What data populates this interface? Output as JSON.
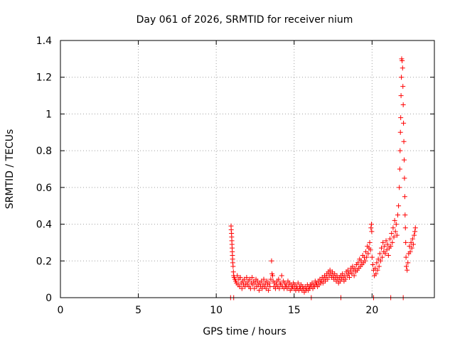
{
  "chart_data": {
    "type": "scatter",
    "title": "Day 061 of 2026, SRMTID for receiver nium",
    "xlabel": "GPS time / hours",
    "ylabel": "SRMTID / TECUs",
    "xlim": [
      0,
      24
    ],
    "ylim": [
      0,
      1.4
    ],
    "x_ticks": [
      0,
      5,
      10,
      15,
      20
    ],
    "x_tick_labels": [
      "0",
      "5",
      "10",
      "15",
      "20"
    ],
    "y_ticks": [
      0,
      0.2,
      0.4,
      0.6,
      0.8,
      1.0,
      1.2,
      1.4
    ],
    "y_tick_labels": [
      "0",
      "0.2",
      "0.4",
      "0.6",
      "0.8",
      "1",
      "1.2",
      "1.4"
    ],
    "grid": true,
    "marker": "plus",
    "color": "#ff0000",
    "series": [
      {
        "name": "SRMTID",
        "points": [
          [
            10.92,
            0.0
          ],
          [
            11.12,
            0.0
          ],
          [
            10.95,
            0.39
          ],
          [
            10.96,
            0.37
          ],
          [
            10.98,
            0.35
          ],
          [
            10.99,
            0.33
          ],
          [
            11.0,
            0.31
          ],
          [
            11.01,
            0.29
          ],
          [
            11.02,
            0.27
          ],
          [
            11.03,
            0.25
          ],
          [
            11.04,
            0.23
          ],
          [
            11.05,
            0.21
          ],
          [
            11.06,
            0.19
          ],
          [
            11.08,
            0.17
          ],
          [
            11.1,
            0.14
          ],
          [
            11.12,
            0.12
          ],
          [
            11.15,
            0.11
          ],
          [
            11.2,
            0.1
          ],
          [
            11.25,
            0.09
          ],
          [
            11.3,
            0.08
          ],
          [
            11.35,
            0.12
          ],
          [
            11.4,
            0.07
          ],
          [
            11.45,
            0.1
          ],
          [
            11.5,
            0.06
          ],
          [
            11.55,
            0.11
          ],
          [
            11.6,
            0.08
          ],
          [
            11.65,
            0.05
          ],
          [
            11.7,
            0.09
          ],
          [
            11.75,
            0.07
          ],
          [
            11.8,
            0.1
          ],
          [
            11.85,
            0.06
          ],
          [
            11.9,
            0.08
          ],
          [
            11.95,
            0.11
          ],
          [
            12.0,
            0.07
          ],
          [
            12.05,
            0.09
          ],
          [
            12.1,
            0.06
          ],
          [
            12.15,
            0.1
          ],
          [
            12.2,
            0.05
          ],
          [
            12.25,
            0.08
          ],
          [
            12.3,
            0.11
          ],
          [
            12.35,
            0.07
          ],
          [
            12.4,
            0.09
          ],
          [
            12.45,
            0.05
          ],
          [
            12.5,
            0.08
          ],
          [
            12.55,
            0.1
          ],
          [
            12.6,
            0.06
          ],
          [
            12.65,
            0.09
          ],
          [
            12.7,
            0.07
          ],
          [
            12.75,
            0.04
          ],
          [
            12.8,
            0.08
          ],
          [
            12.85,
            0.06
          ],
          [
            12.9,
            0.09
          ],
          [
            12.95,
            0.05
          ],
          [
            13.0,
            0.07
          ],
          [
            13.05,
            0.1
          ],
          [
            13.1,
            0.06
          ],
          [
            13.15,
            0.08
          ],
          [
            13.2,
            0.05
          ],
          [
            13.25,
            0.09
          ],
          [
            13.3,
            0.07
          ],
          [
            13.35,
            0.04
          ],
          [
            13.4,
            0.08
          ],
          [
            13.45,
            0.06
          ],
          [
            13.5,
            0.1
          ],
          [
            13.55,
            0.2
          ],
          [
            13.58,
            0.13
          ],
          [
            13.62,
            0.12
          ],
          [
            13.65,
            0.09
          ],
          [
            13.7,
            0.06
          ],
          [
            13.75,
            0.08
          ],
          [
            13.8,
            0.05
          ],
          [
            13.85,
            0.07
          ],
          [
            13.9,
            0.09
          ],
          [
            13.95,
            0.06
          ],
          [
            14.0,
            0.1
          ],
          [
            14.05,
            0.05
          ],
          [
            14.1,
            0.08
          ],
          [
            14.15,
            0.07
          ],
          [
            14.2,
            0.12
          ],
          [
            14.25,
            0.06
          ],
          [
            14.3,
            0.09
          ],
          [
            14.35,
            0.05
          ],
          [
            14.4,
            0.08
          ],
          [
            14.45,
            0.06
          ],
          [
            14.5,
            0.07
          ],
          [
            14.55,
            0.05
          ],
          [
            14.6,
            0.09
          ],
          [
            14.65,
            0.06
          ],
          [
            14.7,
            0.08
          ],
          [
            14.75,
            0.04
          ],
          [
            14.8,
            0.07
          ],
          [
            14.85,
            0.05
          ],
          [
            14.9,
            0.06
          ],
          [
            14.95,
            0.08
          ],
          [
            15.0,
            0.05
          ],
          [
            15.05,
            0.07
          ],
          [
            15.1,
            0.04
          ],
          [
            15.15,
            0.06
          ],
          [
            15.2,
            0.05
          ],
          [
            15.25,
            0.08
          ],
          [
            15.3,
            0.04
          ],
          [
            15.35,
            0.06
          ],
          [
            15.4,
            0.05
          ],
          [
            15.45,
            0.07
          ],
          [
            15.5,
            0.04
          ],
          [
            15.55,
            0.06
          ],
          [
            15.6,
            0.05
          ],
          [
            15.65,
            0.03
          ],
          [
            15.7,
            0.06
          ],
          [
            15.75,
            0.04
          ],
          [
            15.8,
            0.05
          ],
          [
            15.85,
            0.07
          ],
          [
            15.9,
            0.04
          ],
          [
            15.95,
            0.06
          ],
          [
            16.0,
            0.05
          ],
          [
            16.05,
            0.07
          ],
          [
            16.1,
            0.06
          ],
          [
            16.15,
            0.08
          ],
          [
            16.2,
            0.05
          ],
          [
            16.25,
            0.07
          ],
          [
            16.3,
            0.06
          ],
          [
            16.35,
            0.09
          ],
          [
            16.4,
            0.07
          ],
          [
            16.45,
            0.08
          ],
          [
            16.5,
            0.06
          ],
          [
            16.55,
            0.09
          ],
          [
            16.6,
            0.07
          ],
          [
            16.65,
            0.1
          ],
          [
            16.7,
            0.08
          ],
          [
            16.75,
            0.09
          ],
          [
            16.8,
            0.11
          ],
          [
            16.85,
            0.08
          ],
          [
            16.9,
            0.1
          ],
          [
            16.95,
            0.12
          ],
          [
            17.0,
            0.09
          ],
          [
            17.05,
            0.11
          ],
          [
            17.1,
            0.13
          ],
          [
            17.15,
            0.1
          ],
          [
            17.2,
            0.14
          ],
          [
            17.25,
            0.12
          ],
          [
            17.3,
            0.15
          ],
          [
            17.35,
            0.13
          ],
          [
            17.4,
            0.11
          ],
          [
            17.45,
            0.14
          ],
          [
            17.5,
            0.12
          ],
          [
            17.55,
            0.1
          ],
          [
            17.6,
            0.13
          ],
          [
            17.65,
            0.11
          ],
          [
            17.7,
            0.09
          ],
          [
            17.75,
            0.12
          ],
          [
            17.8,
            0.1
          ],
          [
            17.85,
            0.08
          ],
          [
            17.9,
            0.11
          ],
          [
            17.95,
            0.09
          ],
          [
            18.0,
            0.12
          ],
          [
            18.05,
            0.1
          ],
          [
            18.1,
            0.13
          ],
          [
            18.15,
            0.11
          ],
          [
            18.2,
            0.09
          ],
          [
            18.25,
            0.12
          ],
          [
            18.3,
            0.1
          ],
          [
            18.35,
            0.14
          ],
          [
            18.4,
            0.12
          ],
          [
            18.45,
            0.15
          ],
          [
            18.5,
            0.13
          ],
          [
            18.55,
            0.11
          ],
          [
            18.6,
            0.14
          ],
          [
            18.65,
            0.16
          ],
          [
            18.7,
            0.13
          ],
          [
            18.75,
            0.17
          ],
          [
            18.8,
            0.15
          ],
          [
            18.85,
            0.12
          ],
          [
            18.9,
            0.16
          ],
          [
            18.95,
            0.14
          ],
          [
            19.0,
            0.18
          ],
          [
            19.05,
            0.15
          ],
          [
            19.1,
            0.19
          ],
          [
            19.15,
            0.16
          ],
          [
            19.2,
            0.21
          ],
          [
            19.25,
            0.17
          ],
          [
            19.3,
            0.2
          ],
          [
            19.35,
            0.18
          ],
          [
            19.4,
            0.23
          ],
          [
            19.45,
            0.19
          ],
          [
            19.5,
            0.22
          ],
          [
            19.55,
            0.2
          ],
          [
            19.6,
            0.25
          ],
          [
            19.65,
            0.22
          ],
          [
            19.7,
            0.28
          ],
          [
            19.75,
            0.24
          ],
          [
            19.8,
            0.27
          ],
          [
            19.85,
            0.3
          ],
          [
            19.9,
            0.26
          ],
          [
            19.93,
            0.38
          ],
          [
            19.96,
            0.4
          ],
          [
            19.98,
            0.36
          ],
          [
            20.0,
            0.22
          ],
          [
            20.05,
            0.18
          ],
          [
            20.1,
            0.15
          ],
          [
            20.15,
            0.12
          ],
          [
            20.2,
            0.16
          ],
          [
            20.25,
            0.13
          ],
          [
            20.3,
            0.19
          ],
          [
            20.35,
            0.15
          ],
          [
            20.4,
            0.21
          ],
          [
            20.45,
            0.17
          ],
          [
            20.5,
            0.24
          ],
          [
            20.55,
            0.2
          ],
          [
            20.6,
            0.27
          ],
          [
            20.65,
            0.22
          ],
          [
            20.7,
            0.3
          ],
          [
            20.75,
            0.25
          ],
          [
            20.8,
            0.28
          ],
          [
            20.85,
            0.24
          ],
          [
            20.9,
            0.31
          ],
          [
            20.95,
            0.26
          ],
          [
            21.0,
            0.29
          ],
          [
            21.05,
            0.23
          ],
          [
            21.1,
            0.27
          ],
          [
            21.15,
            0.32
          ],
          [
            21.2,
            0.28
          ],
          [
            21.25,
            0.35
          ],
          [
            21.3,
            0.3
          ],
          [
            21.35,
            0.38
          ],
          [
            21.4,
            0.33
          ],
          [
            21.45,
            0.42
          ],
          [
            21.5,
            0.36
          ],
          [
            21.55,
            0.4
          ],
          [
            21.6,
            0.34
          ],
          [
            21.65,
            0.45
          ],
          [
            21.7,
            0.5
          ],
          [
            21.75,
            0.6
          ],
          [
            21.78,
            0.7
          ],
          [
            21.8,
            0.8
          ],
          [
            21.82,
            0.9
          ],
          [
            21.84,
            0.98
          ],
          [
            21.86,
            1.1
          ],
          [
            21.88,
            1.2
          ],
          [
            21.9,
            1.3
          ],
          [
            21.93,
            1.29
          ],
          [
            21.96,
            1.25
          ],
          [
            21.98,
            1.15
          ],
          [
            22.0,
            1.05
          ],
          [
            22.02,
            0.95
          ],
          [
            22.04,
            0.85
          ],
          [
            22.06,
            0.75
          ],
          [
            22.08,
            0.65
          ],
          [
            22.1,
            0.55
          ],
          [
            22.12,
            0.45
          ],
          [
            22.14,
            0.38
          ],
          [
            22.16,
            0.3
          ],
          [
            22.18,
            0.22
          ],
          [
            22.2,
            0.17
          ],
          [
            22.25,
            0.15
          ],
          [
            22.3,
            0.19
          ],
          [
            22.35,
            0.24
          ],
          [
            22.4,
            0.28
          ],
          [
            22.45,
            0.25
          ],
          [
            22.5,
            0.3
          ],
          [
            22.55,
            0.27
          ],
          [
            22.6,
            0.32
          ],
          [
            22.65,
            0.29
          ],
          [
            22.7,
            0.34
          ],
          [
            22.75,
            0.36
          ],
          [
            22.78,
            0.38
          ],
          [
            16.1,
            0.0
          ],
          [
            18.0,
            0.0
          ],
          [
            20.1,
            0.0
          ],
          [
            21.2,
            0.0
          ],
          [
            22.0,
            0.0
          ]
        ]
      }
    ]
  }
}
